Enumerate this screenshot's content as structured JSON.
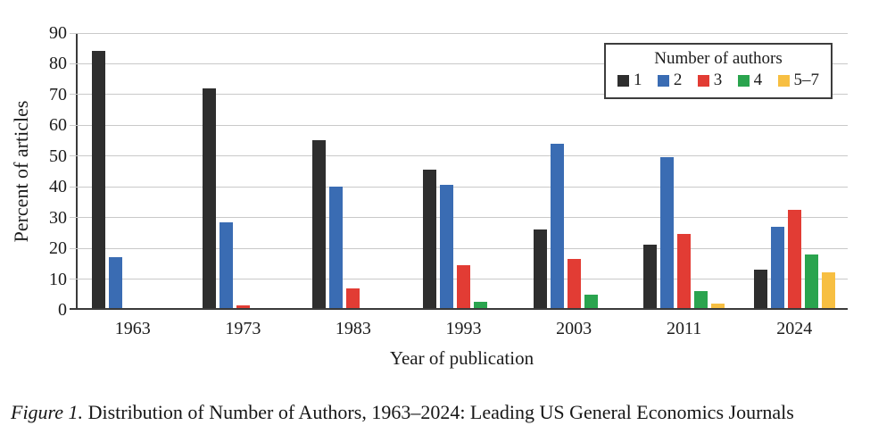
{
  "figure": {
    "caption_label": "Figure 1.",
    "caption_text": " Distribution of Number of Authors, 1963–2024: Leading US General Economics Journals"
  },
  "chart_data": {
    "type": "bar",
    "title": "",
    "xlabel": "Year of publication",
    "ylabel": "Percent of articles",
    "ylim": [
      0,
      90
    ],
    "ytick_step": 10,
    "grid": true,
    "legend_title": "Number of authors",
    "legend_position": "top-right",
    "categories": [
      "1963",
      "1973",
      "1983",
      "1993",
      "2003",
      "2011",
      "2024"
    ],
    "series": [
      {
        "name": "1",
        "color": "#2e2e2e",
        "values": [
          83.5,
          71.5,
          54.5,
          45.0,
          25.5,
          20.5,
          12.5
        ]
      },
      {
        "name": "2",
        "color": "#3a6cb3",
        "values": [
          16.5,
          28.0,
          39.5,
          40.0,
          53.5,
          49.0,
          26.5
        ]
      },
      {
        "name": "3",
        "color": "#e23c34",
        "values": [
          0,
          1.0,
          6.5,
          14.0,
          16.0,
          24.0,
          32.0
        ]
      },
      {
        "name": "4",
        "color": "#2aa44e",
        "values": [
          0,
          0,
          0,
          2.0,
          4.5,
          5.5,
          17.5
        ]
      },
      {
        "name": "5–7",
        "color": "#f7bf42",
        "values": [
          0,
          0,
          0,
          0,
          0,
          1.5,
          11.5
        ]
      }
    ]
  }
}
